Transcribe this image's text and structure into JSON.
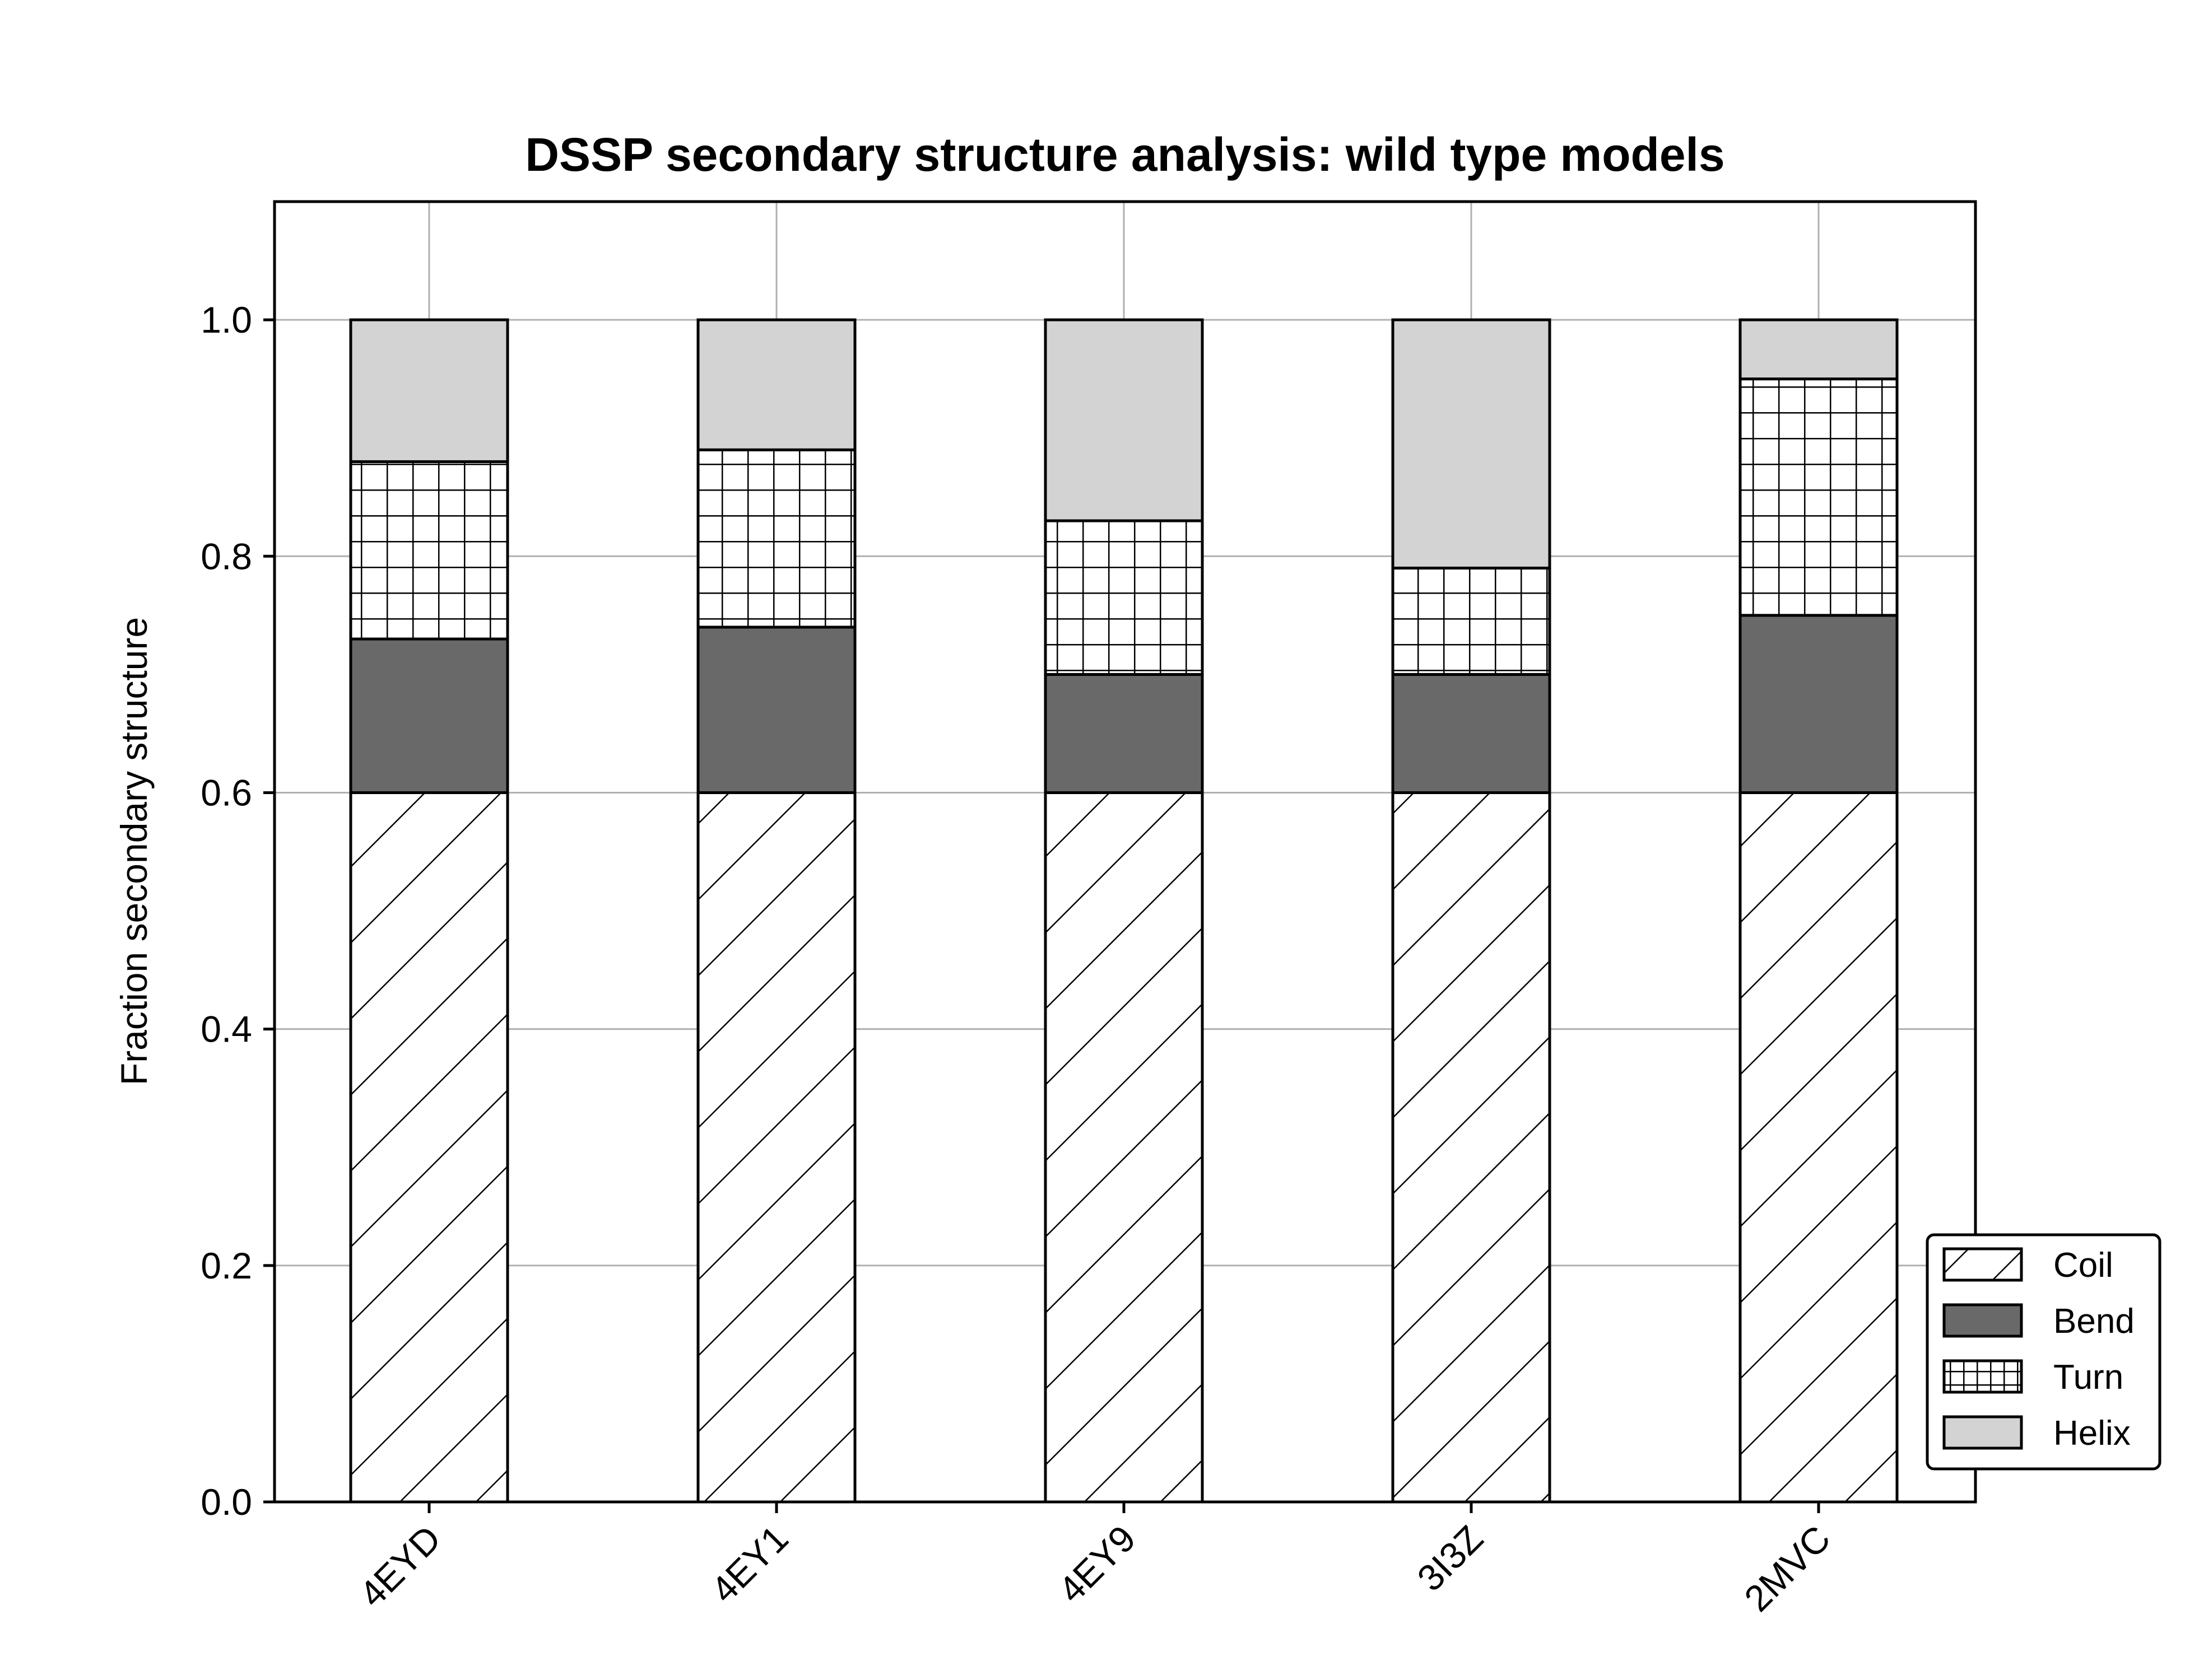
{
  "chart_data": {
    "type": "bar",
    "stacked": true,
    "title": "DSSP secondary structure analysis: wild type models",
    "xlabel": "",
    "ylabel": "Fraction secondary structure",
    "categories": [
      "4EYD",
      "4EY1",
      "4EY9",
      "3I3Z",
      "2MVC"
    ],
    "series": [
      {
        "name": "Coil",
        "values": [
          0.6,
          0.6,
          0.6,
          0.6,
          0.6
        ],
        "color": "#ffffff",
        "hatch": "diagonal"
      },
      {
        "name": "Bend",
        "values": [
          0.13,
          0.14,
          0.1,
          0.1,
          0.15
        ],
        "color": "#696969",
        "hatch": "none"
      },
      {
        "name": "Turn",
        "values": [
          0.15,
          0.15,
          0.13,
          0.09,
          0.2
        ],
        "color": "#ffffff",
        "hatch": "grid"
      },
      {
        "name": "Helix",
        "values": [
          0.12,
          0.11,
          0.17,
          0.21,
          0.05
        ],
        "color": "#d3d3d3",
        "hatch": "none"
      }
    ],
    "ylim": [
      0,
      1.1
    ],
    "yticks": [
      "0.0",
      "0.2",
      "0.4",
      "0.6",
      "0.8",
      "1.0"
    ],
    "xtick_rotation_deg": 45,
    "grid": true,
    "legend_position": "lower-right, outside plot area"
  }
}
